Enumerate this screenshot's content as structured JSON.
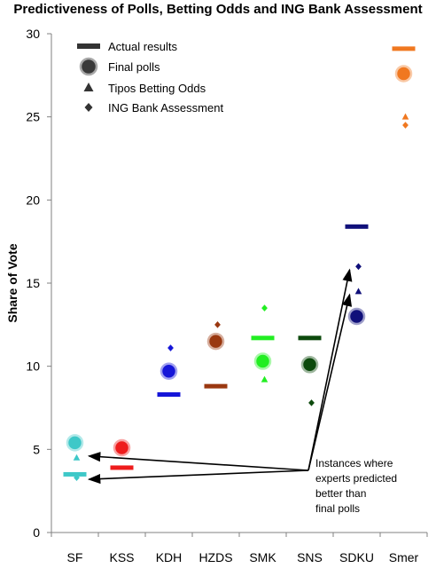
{
  "chart_data": {
    "type": "scatter",
    "title": "Predictiveness of Polls, Betting Odds and ING Bank Assessment",
    "ylabel": "Share of Vote",
    "xlabel": "",
    "ylim": [
      0,
      30
    ],
    "yticks": [
      0,
      5,
      10,
      15,
      20,
      25,
      30
    ],
    "categories": [
      "SF",
      "KSS",
      "KDH",
      "HZDS",
      "SMK",
      "SNS",
      "SDKU",
      "Smer"
    ],
    "colors": [
      "#3ec8c8",
      "#ee1c1c",
      "#1515d8",
      "#9a3810",
      "#22ee22",
      "#0d4a0d",
      "#10107a",
      "#f07820"
    ],
    "legend_position": "top-left",
    "grid": false,
    "series": [
      {
        "name": "Actual results",
        "marker": "dash",
        "values": [
          3.5,
          3.9,
          8.3,
          8.8,
          11.7,
          11.7,
          18.4,
          29.1
        ]
      },
      {
        "name": "Final polls",
        "marker": "circle",
        "values": [
          5.4,
          5.1,
          9.7,
          11.5,
          10.3,
          10.1,
          13.0,
          27.6
        ]
      },
      {
        "name": "Tipos Betting Odds",
        "marker": "triangle",
        "values": [
          4.5,
          5.2,
          9.6,
          null,
          9.2,
          null,
          14.5,
          25.0
        ]
      },
      {
        "name": "ING Bank Assessment",
        "marker": "diamond",
        "values": [
          3.3,
          4.8,
          11.1,
          12.5,
          13.5,
          7.8,
          16.0,
          24.5
        ]
      }
    ],
    "annotation": {
      "lines": [
        "Instances where",
        "experts predicted",
        "better than",
        "final polls"
      ],
      "arrow_targets": [
        {
          "category": "SF",
          "value": 4.6
        },
        {
          "category": "SF",
          "value": 3.2
        },
        {
          "category": "SDKU",
          "value": 14.3
        },
        {
          "category": "SDKU",
          "value": 15.8
        }
      ]
    }
  }
}
